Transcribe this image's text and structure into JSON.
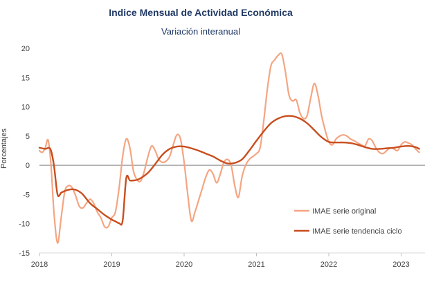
{
  "chart_data": {
    "type": "line",
    "title": "Indice Mensual de  Actividad Económica",
    "subtitle": "Variación interanual",
    "ylabel": "Porcentajes",
    "xlabel": "",
    "ylim": [
      -15,
      20
    ],
    "yticks": [
      -15,
      -10,
      -5,
      0,
      5,
      10,
      15,
      20
    ],
    "xlim": [
      2018,
      2023.33
    ],
    "xticks": [
      2018,
      2019,
      2020,
      2021,
      2022,
      2023
    ],
    "legend_position": "bottom-right",
    "grid": false,
    "series": [
      {
        "name": "IMAE serie original",
        "color": "#f4a582",
        "x": [
          2018.0,
          2018.04,
          2018.08,
          2018.12,
          2018.16,
          2018.2,
          2018.25,
          2018.3,
          2018.35,
          2018.4,
          2018.45,
          2018.5,
          2018.55,
          2018.6,
          2018.65,
          2018.7,
          2018.75,
          2018.8,
          2018.85,
          2018.9,
          2018.95,
          2019.0,
          2019.05,
          2019.1,
          2019.15,
          2019.2,
          2019.25,
          2019.3,
          2019.35,
          2019.4,
          2019.45,
          2019.5,
          2019.55,
          2019.6,
          2019.65,
          2019.7,
          2019.75,
          2019.8,
          2019.85,
          2019.9,
          2019.95,
          2020.0,
          2020.05,
          2020.1,
          2020.15,
          2020.2,
          2020.25,
          2020.3,
          2020.35,
          2020.4,
          2020.45,
          2020.5,
          2020.55,
          2020.6,
          2020.65,
          2020.7,
          2020.75,
          2020.8,
          2020.85,
          2020.9,
          2020.95,
          2021.0,
          2021.05,
          2021.1,
          2021.15,
          2021.2,
          2021.25,
          2021.3,
          2021.35,
          2021.4,
          2021.45,
          2021.5,
          2021.55,
          2021.6,
          2021.65,
          2021.7,
          2021.75,
          2021.8,
          2021.85,
          2021.9,
          2021.95,
          2022.0,
          2022.05,
          2022.1,
          2022.15,
          2022.2,
          2022.25,
          2022.3,
          2022.35,
          2022.4,
          2022.45,
          2022.5,
          2022.55,
          2022.6,
          2022.65,
          2022.7,
          2022.75,
          2022.8,
          2022.85,
          2022.9,
          2022.95,
          2023.0,
          2023.05,
          2023.1,
          2023.15,
          2023.2,
          2023.25
        ],
        "y": [
          2.5,
          2.2,
          3.0,
          4.3,
          0.0,
          -8.0,
          -13.3,
          -9.0,
          -4.5,
          -3.5,
          -3.8,
          -5.2,
          -7.0,
          -7.3,
          -6.5,
          -5.8,
          -6.5,
          -8.0,
          -9.0,
          -10.5,
          -10.5,
          -9.0,
          -8.0,
          -4.0,
          1.5,
          4.5,
          3.0,
          -1.0,
          -2.5,
          -2.7,
          -1.0,
          1.5,
          3.3,
          2.5,
          1.0,
          0.5,
          0.7,
          1.5,
          3.5,
          5.2,
          4.5,
          0.5,
          -5.0,
          -9.5,
          -8.0,
          -6.0,
          -4.0,
          -2.0,
          -0.8,
          -1.5,
          -3.0,
          -1.5,
          0.5,
          1.0,
          0.0,
          -3.5,
          -5.5,
          -2.0,
          0.0,
          1.0,
          1.5,
          2.0,
          3.0,
          7.5,
          13.0,
          17.0,
          18.0,
          18.8,
          19.0,
          16.0,
          12.0,
          11.0,
          11.2,
          9.0,
          8.0,
          8.5,
          11.5,
          14.0,
          12.0,
          8.5,
          6.0,
          4.0,
          3.5,
          4.5,
          5.0,
          5.2,
          5.0,
          4.5,
          4.2,
          3.8,
          3.5,
          3.3,
          4.5,
          4.2,
          3.0,
          2.2,
          2.0,
          2.5,
          3.0,
          2.8,
          2.5,
          3.5,
          4.0,
          3.8,
          3.5,
          2.8,
          2.2
        ]
      },
      {
        "name": "IMAE serie  tendencia ciclo",
        "color": "#c84e1e",
        "x": [
          2018.0,
          2018.08,
          2018.15,
          2018.2,
          2018.25,
          2018.3,
          2018.35,
          2018.4,
          2018.45,
          2018.5,
          2018.55,
          2018.6,
          2018.7,
          2018.8,
          2018.9,
          2019.0,
          2019.05,
          2019.1,
          2019.15,
          2019.2,
          2019.25,
          2019.3,
          2019.35,
          2019.4,
          2019.5,
          2019.6,
          2019.7,
          2019.8,
          2019.9,
          2020.0,
          2020.1,
          2020.2,
          2020.3,
          2020.4,
          2020.5,
          2020.6,
          2020.7,
          2020.8,
          2020.9,
          2021.0,
          2021.1,
          2021.2,
          2021.3,
          2021.4,
          2021.5,
          2021.6,
          2021.7,
          2021.8,
          2021.9,
          2022.0,
          2022.1,
          2022.2,
          2022.3,
          2022.4,
          2022.5,
          2022.6,
          2022.7,
          2022.8,
          2022.9,
          2023.0,
          2023.1,
          2023.2,
          2023.25
        ],
        "y": [
          3.0,
          2.8,
          2.8,
          0.0,
          -5.0,
          -4.7,
          -4.4,
          -4.2,
          -4.1,
          -4.2,
          -4.5,
          -5.0,
          -6.5,
          -7.5,
          -8.5,
          -9.3,
          -9.6,
          -9.9,
          -9.5,
          -2.2,
          -2.6,
          -2.6,
          -2.5,
          -2.2,
          -1.3,
          0.2,
          1.8,
          2.8,
          3.2,
          3.2,
          2.9,
          2.5,
          2.0,
          1.5,
          0.8,
          0.3,
          0.4,
          1.0,
          2.5,
          4.2,
          5.8,
          7.2,
          8.0,
          8.4,
          8.4,
          8.0,
          7.2,
          6.0,
          4.8,
          4.0,
          3.9,
          3.9,
          3.8,
          3.5,
          3.1,
          2.8,
          2.8,
          2.9,
          3.0,
          3.2,
          3.3,
          3.1,
          2.8
        ]
      }
    ]
  }
}
